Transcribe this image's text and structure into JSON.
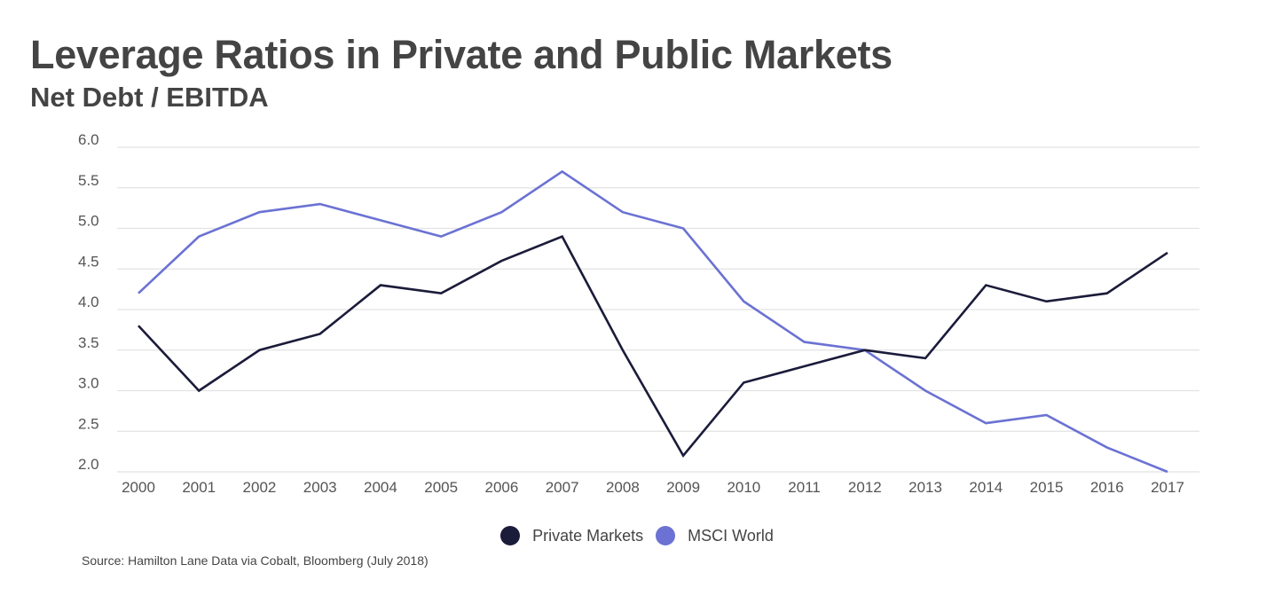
{
  "header": {
    "title": "Leverage Ratios in Private and Public Markets",
    "subtitle": "Net Debt / EBITDA"
  },
  "legend": {
    "items": [
      {
        "label": "Private Markets",
        "color": "#1b1b3a"
      },
      {
        "label": "MSCI World",
        "color": "#6b72d3"
      }
    ]
  },
  "footer": {
    "source": "Source: Hamilton Lane Data via Cobalt, Bloomberg (July 2018)"
  },
  "chart_data": {
    "type": "line",
    "title": "Leverage Ratios in Private and Public Markets",
    "subtitle": "Net Debt / EBITDA",
    "xlabel": "",
    "ylabel": "",
    "categories": [
      "2000",
      "2001",
      "2002",
      "2003",
      "2004",
      "2005",
      "2006",
      "2007",
      "2008",
      "2009",
      "2010",
      "2011",
      "2012",
      "2013",
      "2014",
      "2015",
      "2016",
      "2017"
    ],
    "ylim": [
      2.0,
      6.0
    ],
    "yticks": [
      "6.0",
      "5.5",
      "5.0",
      "4.5",
      "4.0",
      "3.5",
      "3.0",
      "2.5",
      "2.0"
    ],
    "grid": true,
    "legend_position": "bottom",
    "series": [
      {
        "name": "Private Markets",
        "color": "#1b1b3a",
        "values": [
          3.8,
          3.0,
          3.5,
          3.7,
          4.3,
          4.2,
          4.6,
          4.9,
          3.5,
          2.2,
          3.1,
          3.3,
          3.5,
          3.4,
          4.3,
          4.1,
          4.2,
          4.7
        ]
      },
      {
        "name": "MSCI World",
        "color": "#6b72d3",
        "values": [
          4.2,
          4.9,
          5.2,
          5.3,
          5.1,
          4.9,
          5.2,
          5.7,
          5.2,
          5.0,
          4.1,
          3.6,
          3.5,
          3.0,
          2.6,
          2.7,
          2.3,
          2.0
        ]
      }
    ]
  }
}
